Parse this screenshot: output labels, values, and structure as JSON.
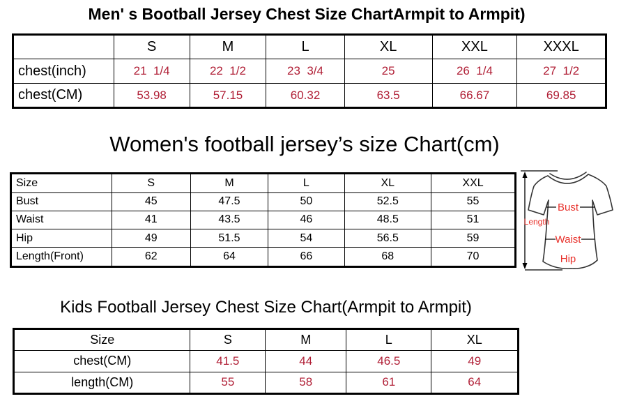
{
  "colors": {
    "value_red": "#B01E35",
    "diagram_red": "#E8312B",
    "border_black": "#000000",
    "shirt_outline": "#333333"
  },
  "men_chart": {
    "title": "Men' s Bootball Jersey Chest Size ChartArmpit to Armpit)",
    "red_rows": [
      1,
      2
    ],
    "rows": [
      [
        "",
        "S",
        "M",
        "L",
        "XL",
        "XXL",
        "XXXL"
      ],
      [
        "chest(inch)",
        "21  1/4",
        "22  1/2",
        "23  3/4",
        "25",
        "26  1/4",
        "27  1/2"
      ],
      [
        "chest(CM)",
        "53.98",
        "57.15",
        "60.32",
        "63.5",
        "66.67",
        "69.85"
      ]
    ]
  },
  "women_chart": {
    "title": "Women's football jersey’s size Chart(cm)",
    "red_rows": [],
    "rows": [
      [
        "Size",
        "S",
        "M",
        "L",
        "XL",
        "XXL"
      ],
      [
        "Bust",
        "45",
        "47.5",
        "50",
        "52.5",
        "55"
      ],
      [
        "Waist",
        "41",
        "43.5",
        "46",
        "48.5",
        "51"
      ],
      [
        "Hip",
        "49",
        "51.5",
        "54",
        "56.5",
        "59"
      ],
      [
        "Length(Front)",
        "62",
        "64",
        "66",
        "68",
        "70"
      ]
    ]
  },
  "kids_chart": {
    "title": "Kids Football Jersey Chest Size Chart(Armpit to Armpit)",
    "red_rows": [
      1,
      2
    ],
    "rows": [
      [
        "Size",
        "S",
        "M",
        "L",
        "XL"
      ],
      [
        "chest(CM)",
        "41.5",
        "44",
        "46.5",
        "49"
      ],
      [
        "length(CM)",
        "55",
        "58",
        "61",
        "64"
      ]
    ]
  },
  "diagram": {
    "length_label": "Length",
    "bust_label": "Bust",
    "waist_label": "Waist",
    "hip_label": "Hip"
  }
}
